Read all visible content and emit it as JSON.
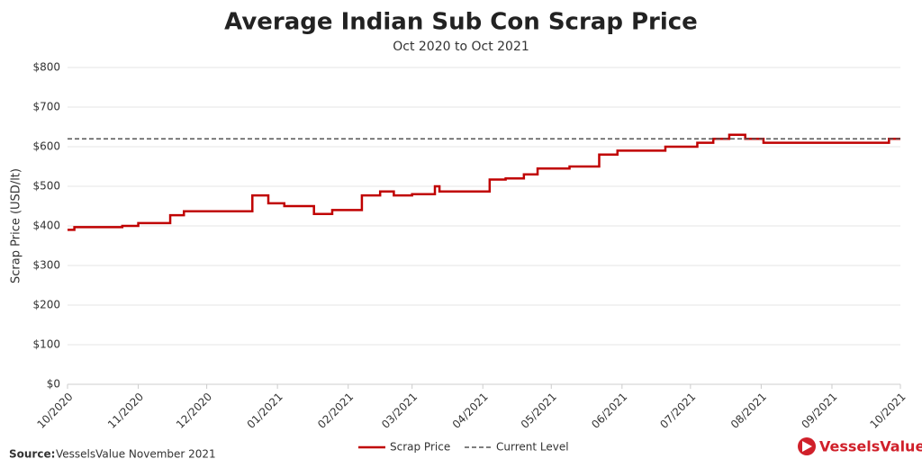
{
  "chart_data": {
    "type": "line",
    "title": "Average Indian Sub Con Scrap Price",
    "subtitle": "Oct 2020 to Oct 2021",
    "y_label": "Scrap Price (USD/lt)",
    "xlim": [
      0,
      365
    ],
    "xticks": [
      {
        "value": 0,
        "label": "10/2020"
      },
      {
        "value": 31,
        "label": "11/2020"
      },
      {
        "value": 61,
        "label": "12/2020"
      },
      {
        "value": 92,
        "label": "01/2021"
      },
      {
        "value": 123,
        "label": "02/2021"
      },
      {
        "value": 151,
        "label": "03/2021"
      },
      {
        "value": 182,
        "label": "04/2021"
      },
      {
        "value": 212,
        "label": "05/2021"
      },
      {
        "value": 243,
        "label": "06/2021"
      },
      {
        "value": 273,
        "label": "07/2021"
      },
      {
        "value": 304,
        "label": "08/2021"
      },
      {
        "value": 335,
        "label": "09/2021"
      },
      {
        "value": 365,
        "label": "10/2021"
      }
    ],
    "ylim": [
      0,
      800
    ],
    "yticks": [
      {
        "value": 0,
        "label": "$0"
      },
      {
        "value": 100,
        "label": "$100"
      },
      {
        "value": 200,
        "label": "$200"
      },
      {
        "value": 300,
        "label": "$300"
      },
      {
        "value": 400,
        "label": "$400"
      },
      {
        "value": 500,
        "label": "$500"
      },
      {
        "value": 600,
        "label": "$600"
      },
      {
        "value": 700,
        "label": "$700"
      },
      {
        "value": 800,
        "label": "$800"
      }
    ],
    "grid": true,
    "legend": "bottom",
    "series": [
      {
        "name": "Scrap Price",
        "color": "#c00000",
        "dashed": false,
        "x": [
          0,
          3,
          3,
          24,
          24,
          31,
          31,
          45,
          45,
          51,
          51,
          81,
          81,
          88,
          88,
          95,
          95,
          108,
          108,
          116,
          116,
          129,
          129,
          137,
          137,
          143,
          143,
          151,
          151,
          161,
          161,
          163,
          163,
          185,
          185,
          192,
          192,
          200,
          200,
          206,
          206,
          220,
          220,
          233,
          233,
          241,
          241,
          262,
          262,
          276,
          276,
          283,
          283,
          290,
          290,
          297,
          297,
          305,
          305,
          360,
          360,
          365
        ],
        "values": [
          390,
          390,
          397,
          397,
          400,
          400,
          407,
          407,
          427,
          427,
          437,
          437,
          477,
          477,
          457,
          457,
          450,
          450,
          430,
          430,
          440,
          440,
          477,
          477,
          487,
          487,
          477,
          477,
          480,
          480,
          500,
          500,
          487,
          487,
          517,
          517,
          520,
          520,
          530,
          530,
          545,
          545,
          550,
          550,
          580,
          580,
          590,
          590,
          600,
          600,
          610,
          610,
          620,
          620,
          630,
          630,
          620,
          620,
          610,
          610,
          620,
          620
        ]
      },
      {
        "name": "Current Level",
        "color": "#555555",
        "dashed": true,
        "x": [
          0,
          365
        ],
        "values": [
          620,
          620
        ]
      }
    ]
  },
  "footer": {
    "source_label": "Source:",
    "source": "VesselsValue November 2021",
    "logo": "VesselsValue"
  }
}
